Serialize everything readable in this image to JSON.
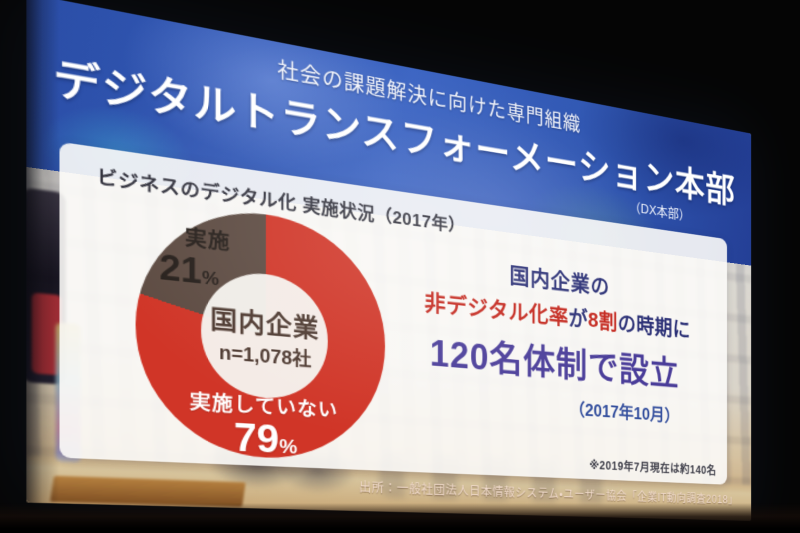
{
  "theme": {
    "accent-red": "#c4271d",
    "navy": "#2b3076",
    "purple": "#4a3d99",
    "blue-note": "#35509e",
    "band-blue": "#3157b4"
  },
  "slide": {
    "header": {
      "subtitle": "社会の課題解決に向けた専門組織",
      "title": "デジタルトランスフォーメーション本部",
      "note": "（DX本部）"
    },
    "panel": {
      "chart_title": "ビジネスのデジタル化 実施状況（2017年）",
      "donut": {
        "seg1_label": "実施",
        "seg1_value": "21",
        "seg1_unit": "%",
        "seg2_label": "実施していない",
        "seg2_value": "79",
        "seg2_unit": "%",
        "center_line1": "国内企業",
        "center_line2": "n=1,078社"
      },
      "message": {
        "line1": "国内企業の",
        "line2": [
          {
            "text": "非デジタル化率",
            "tone": "red"
          },
          {
            "text": "が",
            "tone": "navy"
          },
          {
            "text": "8割",
            "tone": "red"
          },
          {
            "text": "の時期に",
            "tone": "navy"
          }
        ],
        "line3": "120名体制で設立",
        "line4": "（2017年10月）"
      },
      "footnote": "※2019年7月現在は約140名"
    },
    "source": "出所：一般社団法人日本情報システム・ユーザー協会「企業IT動向調査2018」"
  },
  "chart_data": {
    "type": "pie",
    "donut": true,
    "title": "ビジネスのデジタル化 実施状況（2017年）",
    "categories": [
      "実施",
      "実施していない"
    ],
    "values": [
      21,
      79
    ],
    "unit": "%",
    "colors": [
      "#5d4b42",
      "#d03527"
    ],
    "center_label": [
      "国内企業",
      "n=1,078社"
    ],
    "labels_on_slices": true,
    "note": "実施 (21%) slice drawn counter-clockwise from 12 o'clock; 実施していない (79%) fills the remainder clockwise"
  }
}
